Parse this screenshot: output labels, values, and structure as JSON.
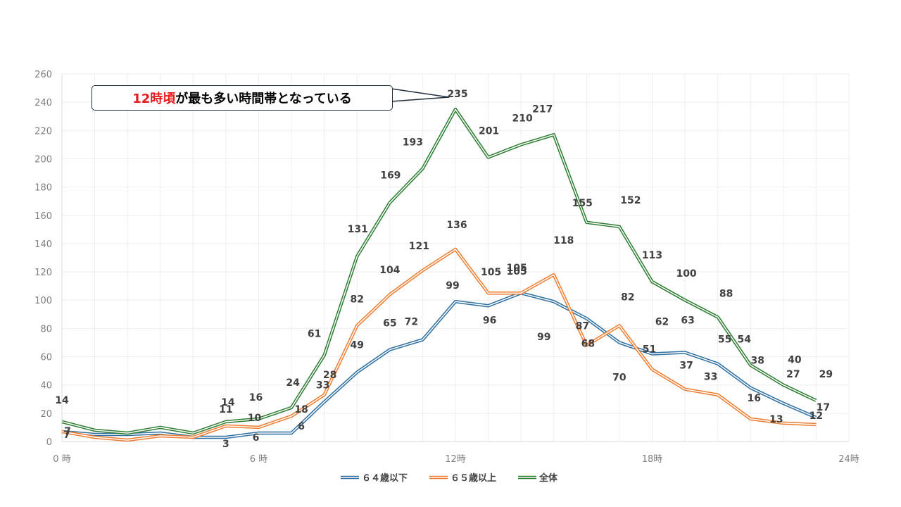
{
  "callout": {
    "highlight": "12時頃",
    "rest": "が最も多い時間帯となっている"
  },
  "colors": {
    "series_64": "#2e6fa0",
    "series_65": "#ed7d31",
    "series_all": "#2e7d32",
    "grid": "#eeeeee",
    "axis": "#d9d9d9"
  },
  "chart_data": {
    "type": "line",
    "x": [
      0,
      1,
      2,
      3,
      4,
      5,
      6,
      7,
      8,
      9,
      10,
      11,
      12,
      13,
      14,
      15,
      16,
      17,
      18,
      19,
      20,
      21,
      22,
      23
    ],
    "xticks": [
      "0 時",
      "6 時",
      "12時",
      "18時",
      "24時"
    ],
    "xtick_values": [
      0,
      6,
      12,
      18,
      24
    ],
    "xlim": [
      0,
      24
    ],
    "ylim": [
      0,
      260
    ],
    "yticks": [
      "0",
      "20",
      "40",
      "60",
      "80",
      "100",
      "120",
      "140",
      "160",
      "180",
      "200",
      "220",
      "240",
      "260"
    ],
    "legend_position": "bottom",
    "grid": true,
    "series": [
      {
        "name": "６４歳以下",
        "values": [
          7,
          5,
          5,
          6,
          3,
          3,
          6,
          6,
          28,
          49,
          65,
          72,
          99,
          96,
          105,
          99,
          87,
          70,
          62,
          63,
          55,
          38,
          27,
          17
        ],
        "labels": [
          "7",
          "",
          "",
          "",
          "",
          "3",
          "6",
          "6",
          "28",
          "49",
          "65",
          "72",
          "99",
          "96",
          "105",
          "99",
          "87",
          "70",
          "62",
          "63",
          "55",
          "38",
          "27",
          "17"
        ]
      },
      {
        "name": "６５歳以上",
        "values": [
          7,
          3,
          1,
          4,
          3,
          11,
          10,
          18,
          33,
          82,
          104,
          121,
          136,
          105,
          105,
          118,
          68,
          82,
          51,
          37,
          33,
          16,
          13,
          12
        ],
        "labels": [
          "7",
          "",
          "",
          "",
          "",
          "11",
          "10",
          "18",
          "33",
          "82",
          "104",
          "121",
          "136",
          "105",
          "105",
          "118",
          "68",
          "82",
          "51",
          "37",
          "33",
          "16",
          "13",
          "12"
        ]
      },
      {
        "name": "全体",
        "values": [
          14,
          8,
          6,
          10,
          6,
          14,
          16,
          24,
          61,
          131,
          169,
          193,
          235,
          201,
          210,
          217,
          155,
          152,
          113,
          100,
          88,
          54,
          40,
          29
        ],
        "labels": [
          "14",
          "",
          "",
          "",
          "",
          "14",
          "16",
          "24",
          "61",
          "131",
          "169",
          "193",
          "235",
          "201",
          "210",
          "217",
          "155",
          "152",
          "113",
          "100",
          "88",
          "54",
          "40",
          "29"
        ]
      }
    ]
  }
}
